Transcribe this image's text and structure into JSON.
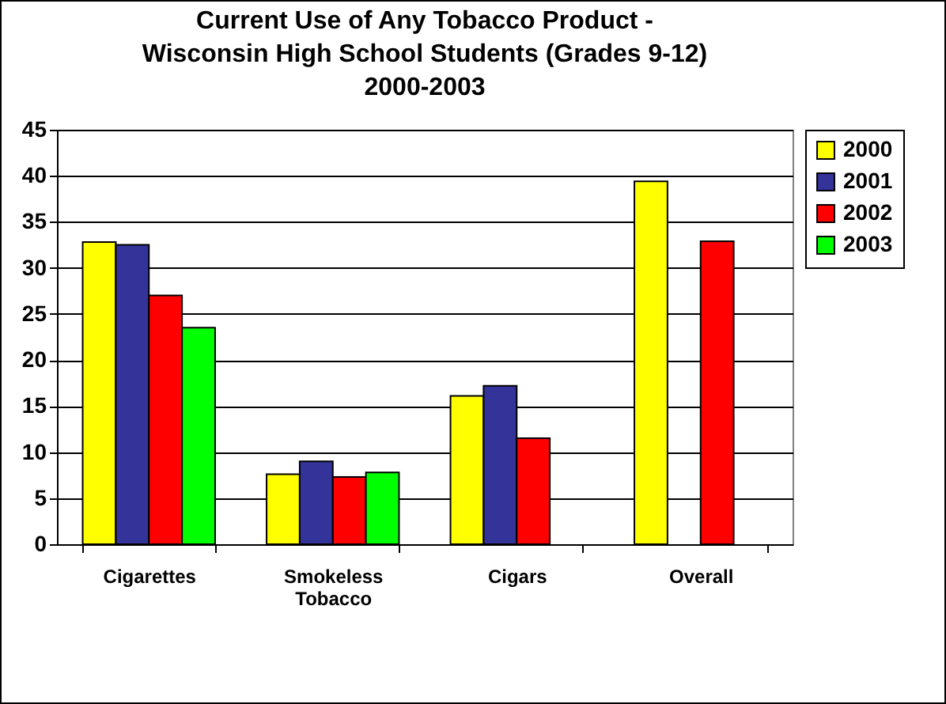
{
  "chart_data": {
    "type": "bar",
    "title": "Current Use of Any Tobacco Product -\nWisconsin High School Students (Grades 9-12)\n2000-2003",
    "categories": [
      "Cigarettes",
      "Smokeless Tobacco",
      "Cigars",
      "Overall"
    ],
    "series": [
      {
        "name": "2000",
        "color": "#ffff00",
        "values": [
          32.8,
          7.6,
          16.1,
          39.4
        ]
      },
      {
        "name": "2001",
        "color": "#333399",
        "values": [
          32.5,
          9.0,
          17.2,
          null
        ]
      },
      {
        "name": "2002",
        "color": "#ff0000",
        "values": [
          27.0,
          7.3,
          11.5,
          32.9
        ]
      },
      {
        "name": "2003",
        "color": "#00ff00",
        "values": [
          23.5,
          7.8,
          null,
          null
        ]
      }
    ],
    "ylim": [
      0,
      45
    ],
    "yticks": [
      0,
      5,
      10,
      15,
      20,
      25,
      30,
      35,
      40,
      45
    ],
    "grid": "y",
    "legend": "right"
  }
}
